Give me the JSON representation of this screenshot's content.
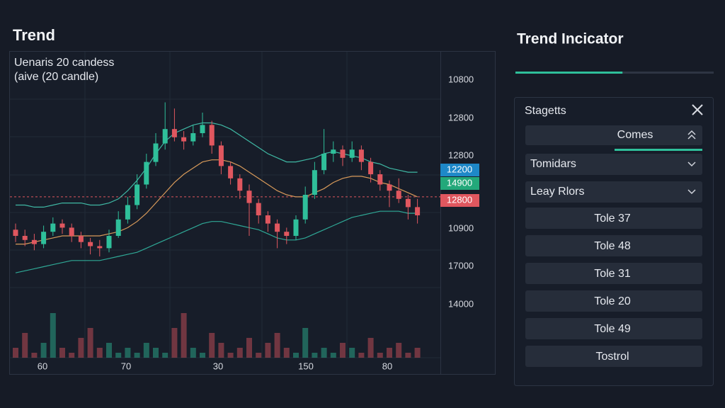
{
  "title": "Trend",
  "chart_data": {
    "type": "candlestick",
    "legend": [
      "Uenaris 20 candess",
      "(aive (20 candle)"
    ],
    "ylim": [
      0,
      100
    ],
    "y_axis_labels": [
      "10800",
      "12800",
      "12800",
      "10900",
      "17000",
      "14000"
    ],
    "price_badges": [
      {
        "label": "12200",
        "color": "#1e88c8"
      },
      {
        "label": "14900",
        "color": "#23a87a"
      },
      {
        "label": "12800",
        "color": "#e0575f"
      }
    ],
    "x_axis_labels": [
      "60",
      "70",
      "30",
      "150",
      "80"
    ],
    "up_color": "#2fbf9a",
    "down_color": "#e0575f",
    "reference_line": 49,
    "candles": [
      [
        33,
        36,
        27,
        30
      ],
      [
        30,
        33,
        25,
        28
      ],
      [
        28,
        31,
        23,
        26
      ],
      [
        26,
        35,
        24,
        32
      ],
      [
        32,
        39,
        30,
        36
      ],
      [
        36,
        38,
        31,
        34
      ],
      [
        34,
        36,
        27,
        30
      ],
      [
        30,
        32,
        24,
        27
      ],
      [
        27,
        29,
        21,
        25
      ],
      [
        25,
        28,
        20,
        24
      ],
      [
        24,
        33,
        22,
        30
      ],
      [
        30,
        42,
        29,
        38
      ],
      [
        38,
        49,
        36,
        45
      ],
      [
        45,
        60,
        43,
        55
      ],
      [
        55,
        70,
        53,
        66
      ],
      [
        66,
        80,
        64,
        75
      ],
      [
        75,
        95,
        72,
        82
      ],
      [
        82,
        92,
        76,
        78
      ],
      [
        78,
        81,
        72,
        76
      ],
      [
        76,
        84,
        74,
        80
      ],
      [
        80,
        90,
        78,
        84
      ],
      [
        84,
        86,
        70,
        74
      ],
      [
        74,
        76,
        60,
        64
      ],
      [
        64,
        66,
        55,
        58
      ],
      [
        58,
        60,
        48,
        52
      ],
      [
        52,
        55,
        30,
        46
      ],
      [
        46,
        48,
        36,
        40
      ],
      [
        40,
        42,
        32,
        36
      ],
      [
        36,
        38,
        24,
        32
      ],
      [
        32,
        34,
        26,
        30
      ],
      [
        30,
        40,
        28,
        38
      ],
      [
        38,
        54,
        36,
        50
      ],
      [
        50,
        66,
        48,
        62
      ],
      [
        62,
        82,
        60,
        70
      ],
      [
        70,
        76,
        66,
        72
      ],
      [
        72,
        74,
        64,
        68
      ],
      [
        68,
        76,
        66,
        72
      ],
      [
        72,
        74,
        62,
        66
      ],
      [
        66,
        68,
        56,
        60
      ],
      [
        60,
        62,
        52,
        55
      ],
      [
        55,
        57,
        44,
        52
      ],
      [
        52,
        58,
        46,
        48
      ],
      [
        48,
        50,
        38,
        44
      ],
      [
        44,
        48,
        36,
        40
      ]
    ],
    "volume": [
      2,
      5,
      1,
      3,
      9,
      2,
      1,
      4,
      6,
      2,
      3,
      1,
      2,
      1,
      3,
      2,
      1,
      6,
      9,
      2,
      1,
      5,
      3,
      1,
      2,
      4,
      1,
      3,
      5,
      2,
      1,
      6,
      1,
      2,
      1,
      3,
      2,
      1,
      4,
      1,
      2,
      3,
      1,
      2
    ],
    "series": [
      {
        "color": "#3fb8a4",
        "values": [
          45,
          45,
          44,
          44,
          45,
          46,
          46,
          46,
          45,
          45,
          46,
          48,
          52,
          57,
          63,
          70,
          76,
          80,
          82,
          84,
          85,
          85,
          84,
          82,
          79,
          76,
          73,
          70,
          68,
          66,
          66,
          67,
          68,
          70,
          71,
          70,
          69,
          68,
          66,
          65,
          63,
          62,
          61,
          61
        ]
      },
      {
        "color": "#d89a5a",
        "values": [
          26,
          26,
          27,
          28,
          29,
          30,
          30,
          30,
          30,
          30,
          31,
          32,
          34,
          37,
          41,
          46,
          51,
          56,
          60,
          63,
          66,
          67,
          67,
          66,
          64,
          61,
          58,
          55,
          52,
          50,
          49,
          49,
          51,
          53,
          56,
          58,
          59,
          59,
          58,
          56,
          55,
          53,
          51,
          49
        ]
      },
      {
        "color": "#2fa896",
        "values": [
          12,
          13,
          14,
          15,
          16,
          17,
          18,
          18,
          18,
          18,
          19,
          20,
          21,
          22,
          24,
          26,
          28,
          30,
          32,
          34,
          36,
          37,
          37,
          36,
          35,
          34,
          33,
          31,
          29,
          28,
          28,
          29,
          31,
          33,
          35,
          37,
          39,
          40,
          41,
          42,
          42,
          42,
          41,
          41
        ]
      }
    ]
  },
  "sidebar": {
    "title": "Trend Incicator",
    "progress": 54,
    "panel_title": "Stagetts",
    "selected": "Comes",
    "dropdowns": [
      "Tomidars",
      "Leay Rlors"
    ],
    "items": [
      "Tole 37",
      "Tole 48",
      "Tole 31",
      "Tole 20",
      "Tole 49",
      "Tostrol"
    ]
  }
}
